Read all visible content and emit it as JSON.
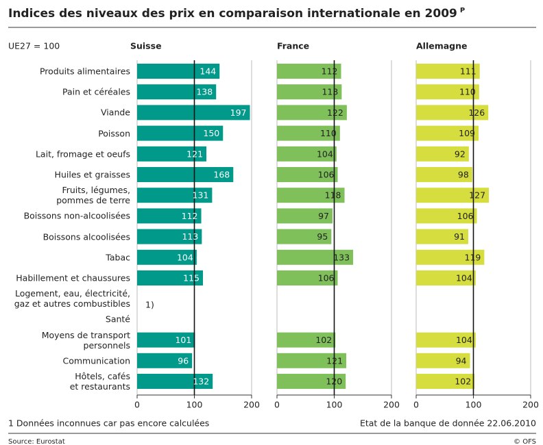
{
  "chart_data": {
    "type": "bar",
    "orientation": "horizontal",
    "title": "Indices des niveaux des prix en comparaison internationale en 2009",
    "title_superscript": "P",
    "unit_note": "UE27 = 100",
    "categories": [
      "Produits alimentaires",
      "Pain et céréales",
      "Viande",
      "Poisson",
      "Lait, fromage et oeufs",
      "Huiles et graisses",
      "Fruits, légumes,\npommes de terre",
      "Boissons non-alcoolisées",
      "Boissons alcoolisées",
      "Tabac",
      "Habillement et chaussures",
      "Logement, eau, électricité,\ngaz et autres combustibles",
      "Santé",
      "Moyens de transport\npersonnels",
      "Communication",
      "Hôtels, cafés\net restaurants"
    ],
    "series": [
      {
        "name": "Suisse",
        "color": "#00998a",
        "label_color": "#ffffff",
        "values": [
          144,
          138,
          197,
          150,
          121,
          168,
          131,
          112,
          113,
          104,
          115,
          null,
          null,
          101,
          96,
          132
        ]
      },
      {
        "name": "France",
        "color": "#7fc05a",
        "label_color": "#222222",
        "values": [
          112,
          113,
          122,
          110,
          104,
          106,
          118,
          97,
          95,
          133,
          106,
          null,
          null,
          102,
          121,
          120
        ]
      },
      {
        "name": "Allemagne",
        "color": "#d6dd3e",
        "label_color": "#222222",
        "values": [
          111,
          110,
          126,
          109,
          92,
          98,
          127,
          106,
          91,
          119,
          104,
          null,
          null,
          104,
          94,
          102
        ]
      }
    ],
    "xlim": [
      0,
      200
    ],
    "xticks": [
      0,
      100,
      200
    ],
    "reference_line": 100,
    "annotation": "1)",
    "footnote": "1 Données inconnues car pas encore calculées",
    "data_date": "Etat de la banque de donnée 22.06.2010",
    "source": "Source: Eurostat",
    "copyright": "© OFS"
  }
}
